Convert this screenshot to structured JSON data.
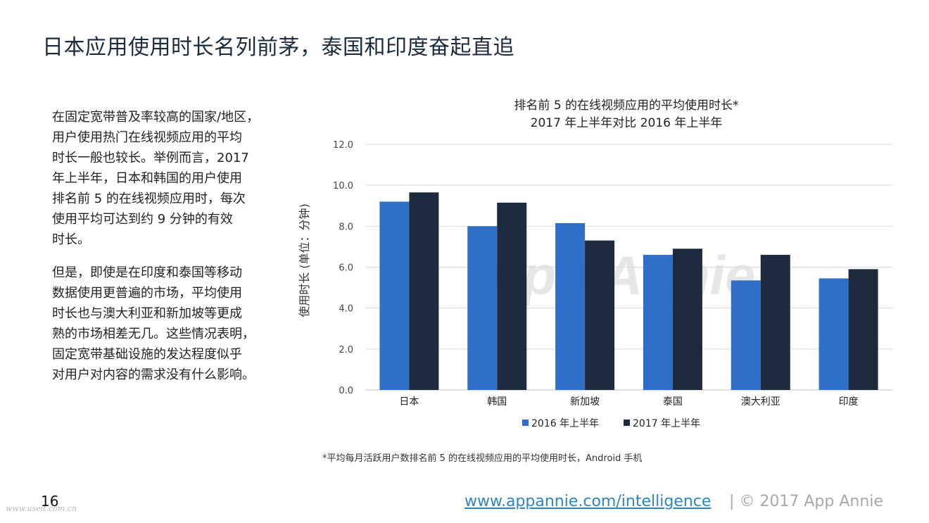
{
  "page": {
    "title": "日本应用使用时长名列前茅，泰国和印度奋起直追",
    "paragraphs": [
      [
        "在固定宽带普及率较高的国家/地区，",
        "用户使用热门在线视频应用的平均",
        "时长一般也较长。举例而言，2017",
        "年上半年，日本和韩国的用户使用",
        "排名前 5 的在线视频应用时，每次",
        "使用平均可达到约 9 分钟的有效",
        "时长。"
      ],
      [
        "但是，即使是在印度和泰国等移动",
        "数据使用更普遍的市场，平均使用",
        "时长也与澳大利亚和新加坡等更成",
        "熟的市场相差无几。这些情况表明，",
        "固定宽带基础设施的发达程度似乎",
        "对用户对内容的需求没有什么影响。"
      ]
    ],
    "footnote": "*平均每月活跃用户数排名前 5 的在线视频应用的平均使用时长，Android 手机",
    "page_number": "16",
    "site_watermark": "www.useit.com.cn",
    "footer_link": "www.appannie.com/intelligence",
    "footer_copyright": "|  © 2017 App Annie"
  },
  "colors": {
    "series_2016": "#2f6fc8",
    "series_2017": "#1e2a3d",
    "grid": "#d9d9d9",
    "watermark": "#e6e6e6",
    "link": "#2e86c1"
  },
  "chart_data": {
    "type": "bar",
    "title_lines": [
      "排名前 5 的在线视频应用的平均使用时长*",
      "2017 年上半年对比 2016 年上半年"
    ],
    "ylabel": "使用时长 (单位：分钟)",
    "xlabel": "",
    "ylim": [
      0,
      12
    ],
    "yticks": [
      "0.0",
      "2.0",
      "4.0",
      "6.0",
      "8.0",
      "10.0",
      "12.0"
    ],
    "ytick_values": [
      0,
      2,
      4,
      6,
      8,
      10,
      12
    ],
    "grid": true,
    "legend": "bottom",
    "watermark": "App Annie",
    "categories": [
      "日本",
      "韩国",
      "新加坡",
      "泰国",
      "澳大利亚",
      "印度"
    ],
    "series": [
      {
        "name": "2016 年上半年",
        "values": [
          9.2,
          8.0,
          8.15,
          6.6,
          5.35,
          5.45
        ]
      },
      {
        "name": "2017 年上半年",
        "values": [
          9.65,
          9.15,
          7.3,
          6.9,
          6.6,
          5.9
        ]
      }
    ]
  }
}
